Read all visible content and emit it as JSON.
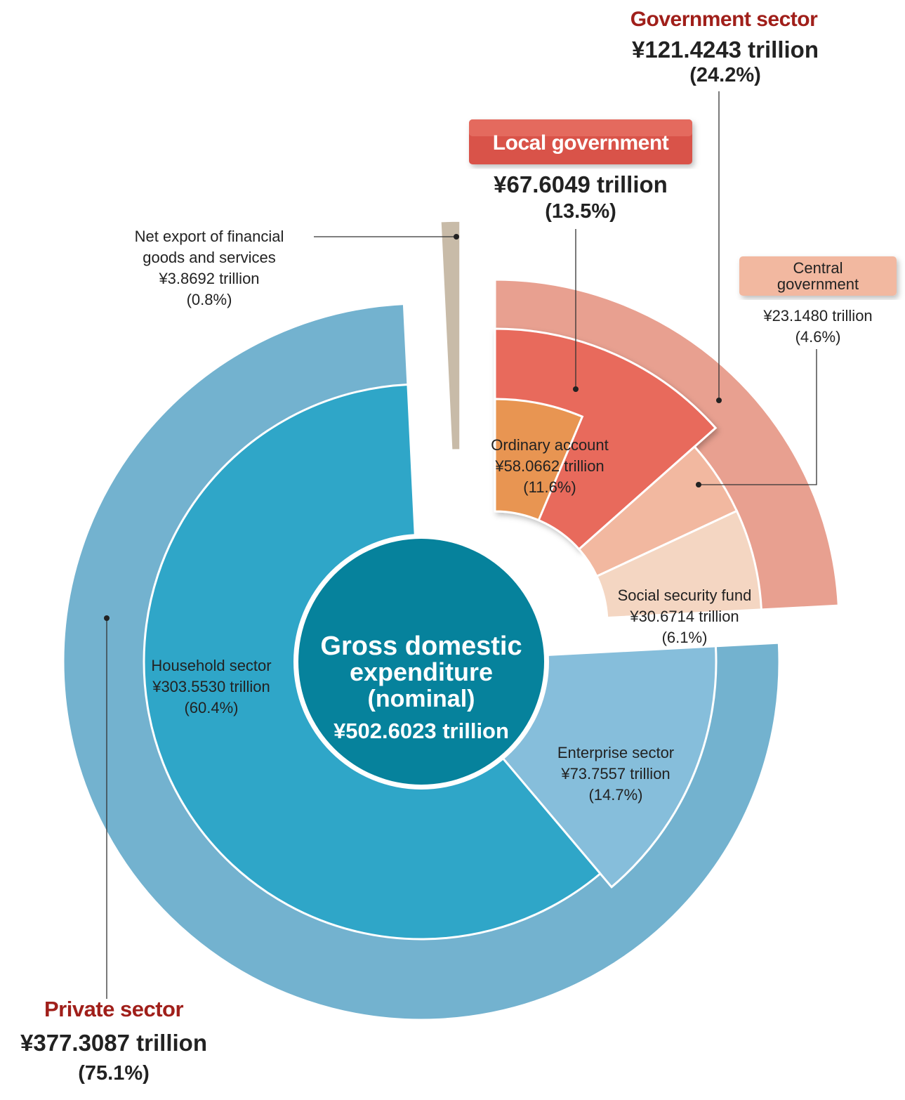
{
  "chart_data": {
    "type": "pie",
    "unit": "trillion",
    "center": {
      "title_line1": "Gross domestic",
      "title_line2": "expenditure",
      "title_line3": "(nominal)",
      "total_text": "¥502.6023 trillion",
      "total": 502.6023
    },
    "outer_ring": [
      {
        "name": "Private sector",
        "value": 377.3087,
        "value_text": "¥377.3087 trillion",
        "pct_text": "(75.1%)",
        "color": "#73b2cf"
      },
      {
        "name": "Net export of financial goods and services",
        "value": 3.8692,
        "value_text": "¥3.8692 trillion",
        "pct_text": "(0.8%)",
        "color": "#c8bba8"
      },
      {
        "name": "Government sector",
        "value": 121.4243,
        "value_text": "¥121.4243 trillion",
        "pct_text": "(24.2%)",
        "color": "#e8a090"
      }
    ],
    "inner_ring": [
      {
        "name": "Household sector",
        "value": 303.553,
        "value_text": "¥303.5530 trillion",
        "pct_text": "(60.4%)",
        "color": "#2fa6c8"
      },
      {
        "name": "Enterprise sector",
        "value": 73.7557,
        "value_text": "¥73.7557 trillion",
        "pct_text": "(14.7%)",
        "color": "#86bedb"
      },
      {
        "name": "Local government",
        "value": 67.6049,
        "value_text": "¥67.6049 trillion",
        "pct_text": "(13.5%)",
        "color": "#e86b5c"
      },
      {
        "name": "Central government",
        "value": 23.148,
        "value_text": "¥23.1480 trillion",
        "pct_text": "(4.6%)",
        "color": "#f2b8a0"
      },
      {
        "name": "Social security fund",
        "value": 30.6714,
        "value_text": "¥30.6714 trillion",
        "pct_text": "(6.1%)",
        "color": "#f4d6c2"
      }
    ],
    "sub_slice": {
      "name": "Ordinary account",
      "value": 58.0662,
      "value_text": "¥58.0662 trillion",
      "pct_text": "(11.6%)",
      "color": "#e89552"
    },
    "labels": {
      "net_export_line1": "Net export of financial",
      "net_export_line2": "goods and services",
      "central_line1": "Central",
      "central_line2": "government"
    }
  }
}
